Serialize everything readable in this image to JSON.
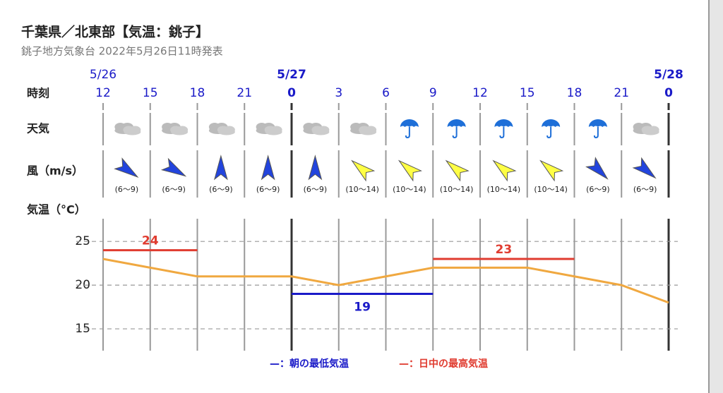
{
  "header": {
    "title": "千葉県／北東部【気温：銚子】",
    "subtitle": "銚子地方気象台 2022年5月26日11時発表"
  },
  "row_labels": {
    "time": "時刻",
    "weather": "天気",
    "wind": "風（m/s）",
    "temp": "気温（°C）"
  },
  "chart_data": {
    "type": "line",
    "categories": [
      "12",
      "15",
      "18",
      "21",
      "0",
      "3",
      "6",
      "9",
      "12",
      "15",
      "18",
      "21",
      "0"
    ],
    "date_labels": [
      "5/26",
      null,
      null,
      null,
      "5/27",
      null,
      null,
      null,
      null,
      null,
      null,
      null,
      "5/28"
    ],
    "values": [
      23,
      22,
      21,
      21,
      21,
      20,
      21,
      22,
      22,
      22,
      21,
      20,
      18
    ],
    "color": "#f0a840",
    "ranges": [
      {
        "name": "—：朝の最低気温",
        "color": "#1a1ac8",
        "segments": [
          {
            "start": 4,
            "end": 7,
            "value": 19
          }
        ]
      },
      {
        "name": "—：日中の最高気温",
        "color": "#e03c30",
        "segments": [
          {
            "start": 0,
            "end": 2,
            "value": 24
          },
          {
            "start": 7,
            "end": 10,
            "value": 23
          }
        ]
      }
    ],
    "ylim": [
      12.5,
      27.6
    ],
    "yticks": [
      15,
      20,
      25
    ],
    "grid": true
  },
  "weather": {
    "icons": [
      "cloudy",
      "cloudy",
      "cloudy",
      "cloudy",
      "cloudy",
      "cloudy",
      "rain",
      "rain",
      "rain",
      "rain",
      "rain",
      "cloudy"
    ]
  },
  "wind": [
    {
      "speed": "(6〜9)",
      "direction": 125,
      "color": "#2244dd"
    },
    {
      "speed": "(6〜9)",
      "direction": 120,
      "color": "#2244dd"
    },
    {
      "speed": "(6〜9)",
      "direction": 0,
      "color": "#2244dd"
    },
    {
      "speed": "(6〜9)",
      "direction": 0,
      "color": "#2244dd"
    },
    {
      "speed": "(6〜9)",
      "direction": 0,
      "color": "#2244dd"
    },
    {
      "speed": "(10〜14)",
      "direction": 310,
      "color": "#ffff44"
    },
    {
      "speed": "(10〜14)",
      "direction": 310,
      "color": "#ffff44"
    },
    {
      "speed": "(10〜14)",
      "direction": 310,
      "color": "#ffff44"
    },
    {
      "speed": "(10〜14)",
      "direction": 310,
      "color": "#ffff44"
    },
    {
      "speed": "(10〜14)",
      "direction": 310,
      "color": "#ffff44"
    },
    {
      "speed": "(6〜9)",
      "direction": 135,
      "color": "#2244dd"
    },
    {
      "speed": "(6〜9)",
      "direction": 130,
      "color": "#2244dd"
    }
  ]
}
